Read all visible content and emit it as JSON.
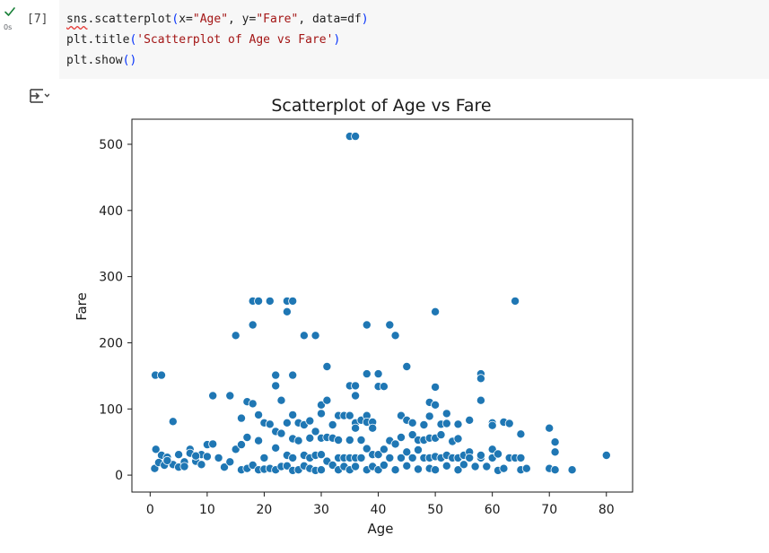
{
  "cell": {
    "status_time": "0s",
    "execution_count": "[7]",
    "code_lines": [
      "sns.scatterplot(x=\"Age\", y=\"Fare\", data=df)",
      "plt.title('Scatterplot of Age vs Fare')",
      "plt.show()"
    ]
  },
  "colors": {
    "point_fill": "#1f77b4",
    "point_edge": "#ffffff",
    "check": "#188038"
  },
  "icons": {
    "status": "check-icon",
    "output_toggle": "output-toggle-icon"
  },
  "chart_data": {
    "type": "scatter",
    "title": "Scatterplot of Age vs Fare",
    "xlabel": "Age",
    "ylabel": "Fare",
    "xlim": [
      -3.2,
      84.6
    ],
    "ylim": [
      -25.6,
      537.9
    ],
    "xticks": [
      0,
      10,
      20,
      30,
      40,
      50,
      60,
      70,
      80
    ],
    "yticks": [
      0,
      100,
      200,
      300,
      400,
      500
    ],
    "grid": false,
    "legend": "none",
    "points": [
      [
        35,
        512
      ],
      [
        36,
        512
      ],
      [
        0.9,
        151
      ],
      [
        2,
        151
      ],
      [
        4,
        81
      ],
      [
        1,
        39
      ],
      [
        2,
        30
      ],
      [
        3,
        27
      ],
      [
        4,
        16
      ],
      [
        5,
        31
      ],
      [
        6,
        20
      ],
      [
        7,
        39
      ],
      [
        8,
        21
      ],
      [
        9,
        31
      ],
      [
        10,
        46
      ],
      [
        0.8,
        10
      ],
      [
        1.5,
        19
      ],
      [
        2.5,
        15
      ],
      [
        3,
        22
      ],
      [
        5,
        12
      ],
      [
        6,
        13
      ],
      [
        7,
        33
      ],
      [
        8,
        29
      ],
      [
        9,
        16
      ],
      [
        10,
        28
      ],
      [
        11,
        120
      ],
      [
        11,
        47
      ],
      [
        12,
        26
      ],
      [
        13,
        12
      ],
      [
        14,
        20
      ],
      [
        14,
        120
      ],
      [
        15,
        211
      ],
      [
        15,
        39
      ],
      [
        16,
        86
      ],
      [
        16,
        46
      ],
      [
        16,
        8
      ],
      [
        17,
        57
      ],
      [
        17,
        111
      ],
      [
        17,
        10
      ],
      [
        18,
        263
      ],
      [
        18,
        227
      ],
      [
        18,
        108
      ],
      [
        18,
        15
      ],
      [
        19,
        263
      ],
      [
        19,
        91
      ],
      [
        19,
        52
      ],
      [
        19,
        8
      ],
      [
        20,
        9
      ],
      [
        20,
        26
      ],
      [
        20,
        79
      ],
      [
        21,
        263
      ],
      [
        21,
        77
      ],
      [
        21,
        10
      ],
      [
        22,
        151
      ],
      [
        22,
        135
      ],
      [
        22,
        66
      ],
      [
        22,
        41
      ],
      [
        22,
        8
      ],
      [
        23,
        113
      ],
      [
        23,
        63
      ],
      [
        23,
        13
      ],
      [
        24,
        263
      ],
      [
        24,
        247
      ],
      [
        24,
        79
      ],
      [
        24,
        30
      ],
      [
        24,
        14
      ],
      [
        25,
        263
      ],
      [
        25,
        151
      ],
      [
        25,
        91
      ],
      [
        25,
        55
      ],
      [
        25,
        26
      ],
      [
        25,
        7
      ],
      [
        26,
        79
      ],
      [
        26,
        52
      ],
      [
        26,
        8
      ],
      [
        27,
        211
      ],
      [
        27,
        76
      ],
      [
        27,
        30
      ],
      [
        27,
        14
      ],
      [
        28,
        82
      ],
      [
        28,
        56
      ],
      [
        28,
        26
      ],
      [
        28,
        10
      ],
      [
        29,
        211
      ],
      [
        29,
        66
      ],
      [
        29,
        30
      ],
      [
        29,
        7
      ],
      [
        30,
        106
      ],
      [
        30,
        93
      ],
      [
        30,
        56
      ],
      [
        30,
        31
      ],
      [
        30,
        8
      ],
      [
        31,
        164
      ],
      [
        31,
        113
      ],
      [
        31,
        57
      ],
      [
        31,
        21
      ],
      [
        32,
        76
      ],
      [
        32,
        56
      ],
      [
        32,
        15
      ],
      [
        33,
        90
      ],
      [
        33,
        53
      ],
      [
        33,
        26
      ],
      [
        33,
        8
      ],
      [
        34,
        90
      ],
      [
        34,
        26
      ],
      [
        34,
        13
      ],
      [
        35,
        135
      ],
      [
        35,
        90
      ],
      [
        35,
        53
      ],
      [
        35,
        26
      ],
      [
        35,
        8
      ],
      [
        36,
        135
      ],
      [
        36,
        120
      ],
      [
        36,
        79
      ],
      [
        36,
        71
      ],
      [
        36,
        26
      ],
      [
        36,
        13
      ],
      [
        37,
        83
      ],
      [
        37,
        53
      ],
      [
        37,
        26
      ],
      [
        38,
        227
      ],
      [
        38,
        153
      ],
      [
        38,
        90
      ],
      [
        38,
        80
      ],
      [
        38,
        40
      ],
      [
        38,
        8
      ],
      [
        39,
        80
      ],
      [
        39,
        71
      ],
      [
        39,
        31
      ],
      [
        39,
        13
      ],
      [
        40,
        153
      ],
      [
        40,
        134
      ],
      [
        40,
        31
      ],
      [
        40,
        8
      ],
      [
        41,
        134
      ],
      [
        41,
        39
      ],
      [
        41,
        15
      ],
      [
        42,
        227
      ],
      [
        42,
        52
      ],
      [
        42,
        26
      ],
      [
        43,
        211
      ],
      [
        43,
        47
      ],
      [
        43,
        8
      ],
      [
        44,
        90
      ],
      [
        44,
        57
      ],
      [
        44,
        26
      ],
      [
        45,
        164
      ],
      [
        45,
        83
      ],
      [
        45,
        35
      ],
      [
        45,
        14
      ],
      [
        46,
        79
      ],
      [
        46,
        61
      ],
      [
        46,
        26
      ],
      [
        47,
        53
      ],
      [
        47,
        38
      ],
      [
        47,
        9
      ],
      [
        48,
        76
      ],
      [
        48,
        53
      ],
      [
        48,
        26
      ],
      [
        49,
        110
      ],
      [
        49,
        89
      ],
      [
        49,
        56
      ],
      [
        49,
        26
      ],
      [
        49,
        10
      ],
      [
        50,
        247
      ],
      [
        50,
        133
      ],
      [
        50,
        106
      ],
      [
        50,
        56
      ],
      [
        50,
        28
      ],
      [
        50,
        8
      ],
      [
        51,
        77
      ],
      [
        51,
        61
      ],
      [
        51,
        26
      ],
      [
        52,
        93
      ],
      [
        52,
        78
      ],
      [
        52,
        30
      ],
      [
        52,
        14
      ],
      [
        53,
        51
      ],
      [
        53,
        26
      ],
      [
        54,
        77
      ],
      [
        54,
        55
      ],
      [
        54,
        26
      ],
      [
        54,
        8
      ],
      [
        55,
        30
      ],
      [
        55,
        16
      ],
      [
        56,
        83
      ],
      [
        56,
        35
      ],
      [
        56,
        26
      ],
      [
        57,
        13
      ],
      [
        58,
        153
      ],
      [
        58,
        146
      ],
      [
        58,
        113
      ],
      [
        58,
        26
      ],
      [
        58,
        30
      ],
      [
        59,
        13
      ],
      [
        60,
        79
      ],
      [
        60,
        75
      ],
      [
        60,
        39
      ],
      [
        60,
        26
      ],
      [
        61,
        32
      ],
      [
        61,
        7
      ],
      [
        62,
        80
      ],
      [
        62,
        10
      ],
      [
        63,
        78
      ],
      [
        63,
        26
      ],
      [
        64,
        263
      ],
      [
        64,
        26
      ],
      [
        65,
        62
      ],
      [
        65,
        26
      ],
      [
        65,
        8
      ],
      [
        66,
        10
      ],
      [
        70,
        71
      ],
      [
        70,
        10
      ],
      [
        71,
        50
      ],
      [
        71,
        35
      ],
      [
        71,
        8
      ],
      [
        74,
        8
      ],
      [
        80,
        30
      ]
    ]
  }
}
